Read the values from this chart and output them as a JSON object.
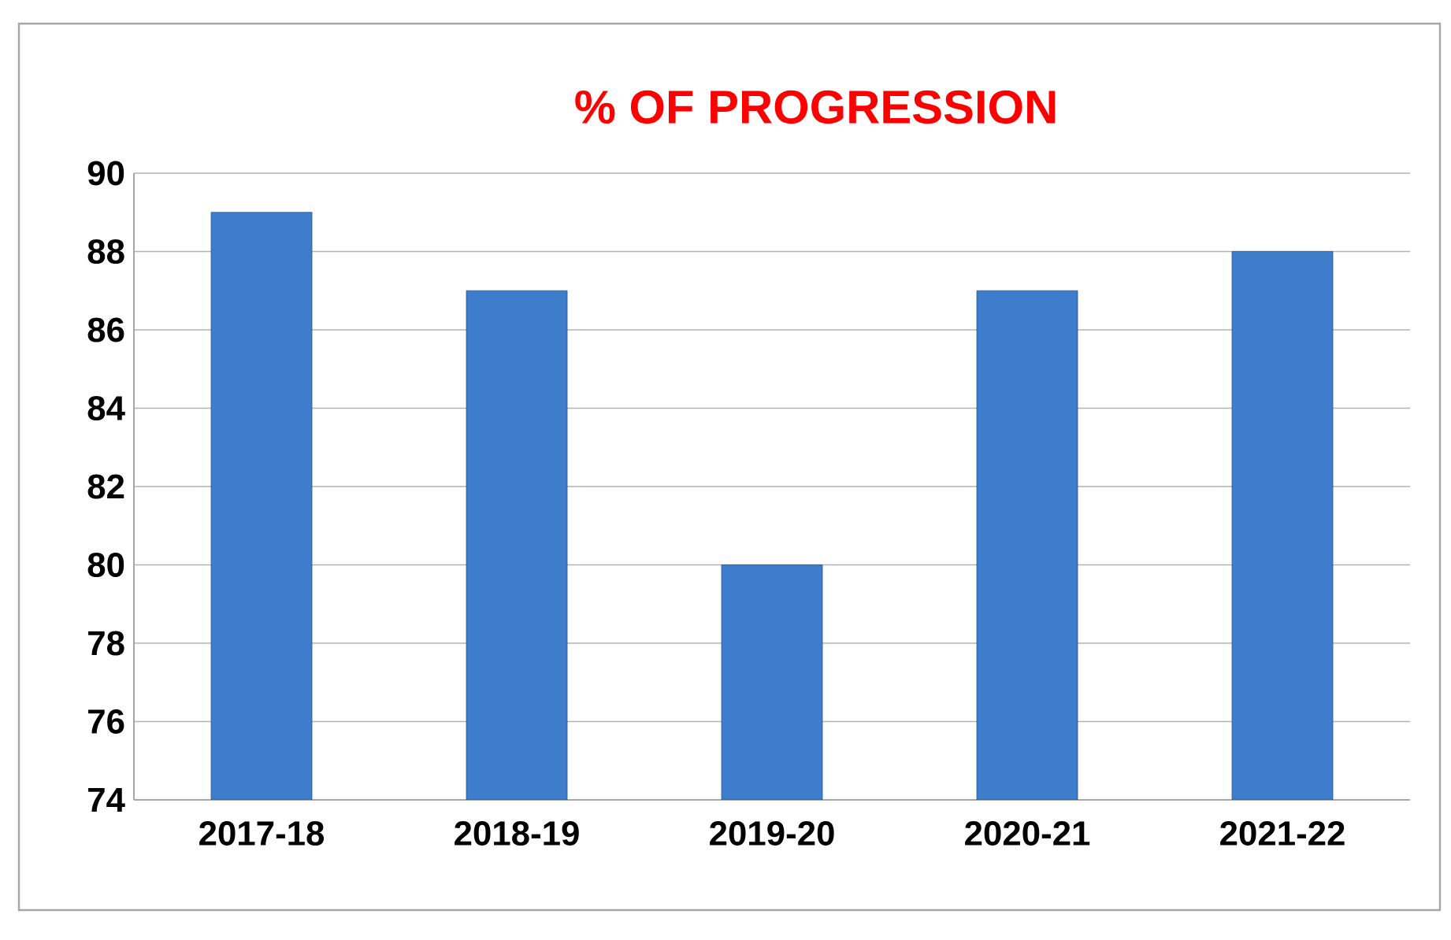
{
  "chart_data": {
    "type": "bar",
    "title": "% OF PROGRESSION",
    "categories": [
      "2017-18",
      "2018-19",
      "2019-20",
      "2020-21",
      "2021-22"
    ],
    "values": [
      89,
      87,
      80,
      87,
      88
    ],
    "color": "#3d7dcc",
    "ylim": [
      74,
      90
    ],
    "yticks": [
      74,
      76,
      78,
      80,
      82,
      84,
      86,
      88,
      90
    ],
    "grid": true
  }
}
